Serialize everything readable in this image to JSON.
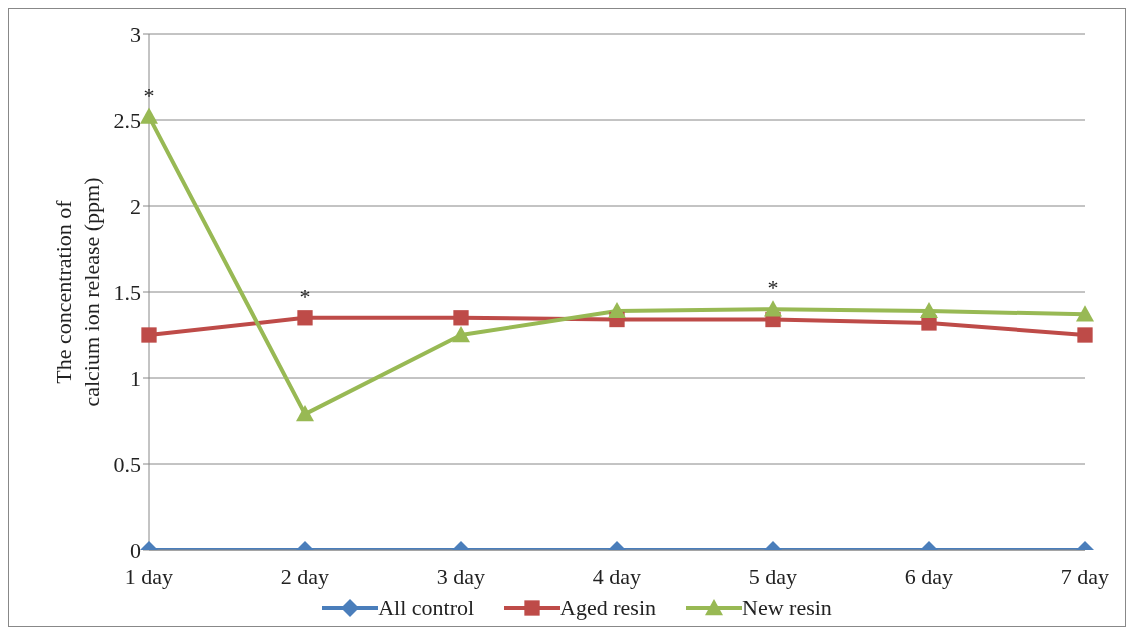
{
  "chart_data": {
    "type": "line",
    "ylabel": "The concentration of calcium ion release (ppm)",
    "categories": [
      "1 day",
      "2 day",
      "3 day",
      "4 day",
      "5 day",
      "6 day",
      "7 day"
    ],
    "series": [
      {
        "name": "All control",
        "color": "#4a7ebb",
        "marker": "diamond",
        "values": [
          0,
          0,
          0,
          0,
          0,
          0,
          0
        ]
      },
      {
        "name": "Aged resin",
        "color": "#be4b48",
        "marker": "square",
        "values": [
          1.25,
          1.35,
          1.35,
          1.34,
          1.34,
          1.32,
          1.25
        ]
      },
      {
        "name": "New resin",
        "color": "#98b954",
        "marker": "triangle",
        "values": [
          2.52,
          0.79,
          1.25,
          1.39,
          1.4,
          1.39,
          1.37
        ]
      }
    ],
    "ylim": [
      0,
      3
    ],
    "yticks": [
      0,
      0.5,
      1,
      1.5,
      2,
      2.5,
      3
    ],
    "grid": "y",
    "legend": "bottom",
    "annotations": [
      {
        "text": "*",
        "x": "1 day",
        "y": 2.52
      },
      {
        "text": "*",
        "x": "2 day",
        "y": 1.35
      },
      {
        "text": "*",
        "x": "5 day",
        "y": 1.4
      }
    ]
  }
}
